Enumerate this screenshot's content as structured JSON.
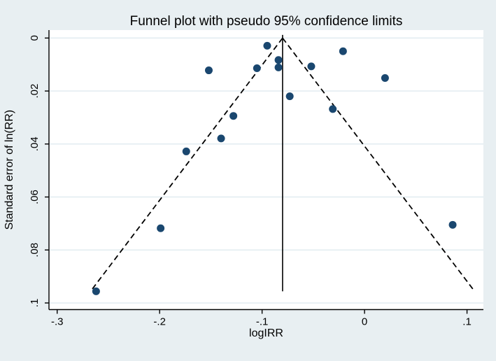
{
  "figure": {
    "background_color": "#e8eff2",
    "plot_background_color": "#ffffff",
    "gridline_color": "#dfeaef",
    "axis_color": "#000000",
    "marker_color": "#1a476f",
    "line_color": "#000000"
  },
  "chart_data": {
    "type": "scatter",
    "title": "Funnel plot with pseudo 95% confidence limits",
    "xlabel": "logIRR",
    "ylabel": "Standard error of ln(RR)",
    "legend": "none",
    "grid": "horizontal",
    "y_axis_inverted": true,
    "xlim": [
      -0.308,
      0.116
    ],
    "ylim_se": [
      -0.003,
      0.1025
    ],
    "x_ticks": [
      -0.3,
      -0.2,
      -0.1,
      0,
      0.1
    ],
    "x_tick_labels": [
      "-.3",
      "-.2",
      "-.1",
      "0",
      ".1"
    ],
    "y_ticks": [
      0,
      0.02,
      0.04,
      0.06,
      0.08,
      0.1
    ],
    "y_tick_labels": [
      "0",
      ".02",
      ".04",
      ".06",
      ".08",
      ".1"
    ],
    "pooled_log_irr": -0.08,
    "ci_multiplier": 1.96,
    "funnel_se_extent": 0.0956,
    "points": [
      {
        "x": -0.095,
        "se": 0.0029
      },
      {
        "x": -0.021,
        "se": 0.005
      },
      {
        "x": -0.084,
        "se": 0.0083
      },
      {
        "x": -0.052,
        "se": 0.0107
      },
      {
        "x": -0.084,
        "se": 0.0111
      },
      {
        "x": -0.105,
        "se": 0.0114
      },
      {
        "x": -0.152,
        "se": 0.0122
      },
      {
        "x": 0.02,
        "se": 0.0151
      },
      {
        "x": -0.073,
        "se": 0.022
      },
      {
        "x": -0.031,
        "se": 0.0268
      },
      {
        "x": -0.128,
        "se": 0.0294
      },
      {
        "x": -0.14,
        "se": 0.0379
      },
      {
        "x": -0.174,
        "se": 0.0428
      },
      {
        "x": 0.086,
        "se": 0.0705
      },
      {
        "x": -0.199,
        "se": 0.0718
      },
      {
        "x": -0.262,
        "se": 0.0956
      }
    ]
  }
}
